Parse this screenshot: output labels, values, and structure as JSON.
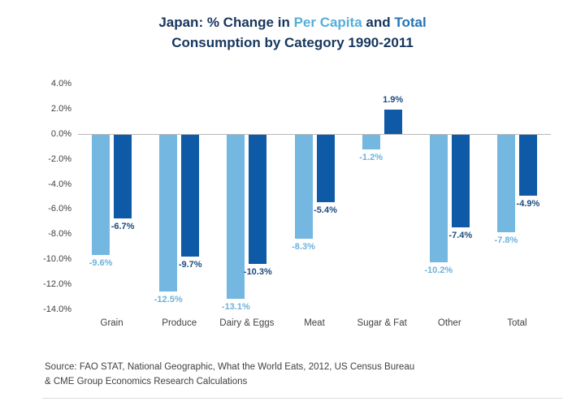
{
  "title": {
    "prefix": "Japan: % Change in ",
    "highlight_per_capita": "Per Capita",
    "middle": " and ",
    "highlight_total": "Total",
    "line2": "Consumption by Category 1990-2011"
  },
  "source": {
    "line1": "Source: FAO STAT, National Geographic, What the World Eats, 2012, US Census Bureau",
    "line2": "& CME Group Economics Research Calculations"
  },
  "colors": {
    "per_capita": "#74b7e0",
    "total": "#0e5aa6",
    "per_capita_label": "#6cb2dc",
    "total_label": "#1b4a7e",
    "per_capita_title": "#56aeda",
    "total_title": "#2174b8",
    "title_navy": "#17365d",
    "axis_text": "#404040",
    "zero_line": "#b9b9b9"
  },
  "chart_data": {
    "type": "bar",
    "title": "Japan: % Change in Per Capita and Total Consumption by Category 1990-2011",
    "categories": [
      "Grain",
      "Produce",
      "Dairy & Eggs",
      "Meat",
      "Sugar & Fat",
      "Other",
      "Total"
    ],
    "series": [
      {
        "name": "Per Capita",
        "values": [
          -9.6,
          -12.5,
          -13.1,
          -8.3,
          -1.2,
          -10.2,
          -7.8
        ]
      },
      {
        "name": "Total",
        "values": [
          -6.7,
          -9.7,
          -10.3,
          -5.4,
          1.9,
          -7.4,
          -4.9
        ]
      }
    ],
    "ylim": [
      -14,
      4
    ],
    "ytick_step": 2,
    "ytick_labels": [
      "4.0%",
      "2.0%",
      "0.0%",
      "-2.0%",
      "-4.0%",
      "-6.0%",
      "-8.0%",
      "-10.0%",
      "-12.0%",
      "-14.0%"
    ],
    "value_label_suffix": "%",
    "grid": false,
    "legend": "none"
  }
}
